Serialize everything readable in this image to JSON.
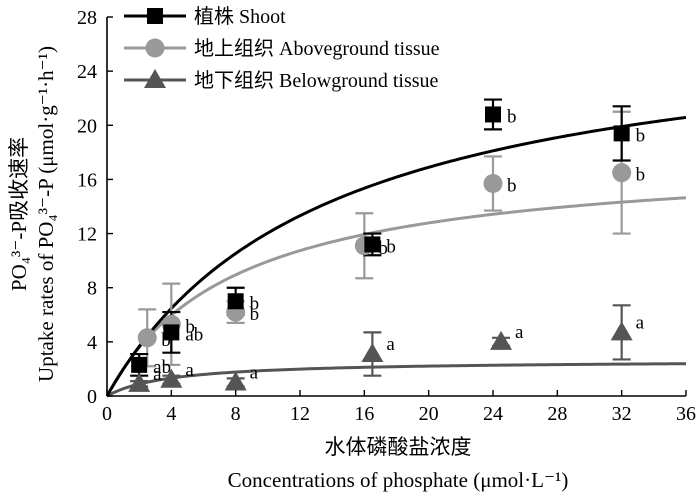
{
  "chart_data": {
    "type": "scatter",
    "xlabel_cn": "水体磷酸盐浓度",
    "xlabel_en": "Concentrations of phosphate (μmol·L⁻¹)",
    "ylabel_cn": "PO₄³⁻-P吸收速率",
    "ylabel_en": "Uptake rates of PO₄³⁻-P (μmol·g⁻¹·h⁻¹)",
    "xlim": [
      0,
      36
    ],
    "ylim": [
      0,
      28
    ],
    "xticks": [
      "0",
      "4",
      "8",
      "12",
      "16",
      "20",
      "24",
      "28",
      "32",
      "36"
    ],
    "yticks": [
      "0",
      "4",
      "8",
      "12",
      "16",
      "20",
      "24",
      "28"
    ],
    "legend_position": "top-left",
    "series": [
      {
        "name": "植株 Shoot",
        "marker": "square",
        "color": "#000000",
        "x": [
          2,
          4,
          8,
          16.5,
          24,
          32
        ],
        "y": [
          2.3,
          4.7,
          7.0,
          11.2,
          20.8,
          19.4
        ],
        "err": [
          0.8,
          1.5,
          1.0,
          0.8,
          1.1,
          2.0
        ],
        "labels": [
          "ab",
          "ab",
          "b",
          "b",
          "b",
          "b"
        ],
        "fit": {
          "vmax": 28.3,
          "km": 13.5
        }
      },
      {
        "name": "地上组织 Aboveground tissue",
        "marker": "circle",
        "color": "#999999",
        "x": [
          2.5,
          4,
          8,
          16,
          24,
          32
        ],
        "y": [
          4.3,
          5.3,
          6.2,
          11.1,
          15.7,
          16.5
        ],
        "err": [
          2.1,
          3.0,
          0.8,
          2.4,
          2.0,
          4.5
        ],
        "labels": [
          "b",
          "b",
          "b",
          "b",
          "b",
          "b"
        ],
        "fit": {
          "vmax": 17.9,
          "km": 8.0
        }
      },
      {
        "name": "地下组织 Belowground tissue",
        "marker": "triangle",
        "color": "#555555",
        "x": [
          2,
          4,
          8,
          16.5,
          24.5,
          32
        ],
        "y": [
          0.9,
          1.2,
          1.0,
          3.1,
          4.0,
          4.7
        ],
        "err": [
          0.2,
          0.3,
          0.3,
          1.6,
          0.3,
          2.0
        ],
        "labels": [
          "a",
          "a",
          "a",
          "a",
          "a",
          "a"
        ],
        "fit": {
          "vmax": 2.65,
          "km": 4.0
        }
      }
    ]
  }
}
